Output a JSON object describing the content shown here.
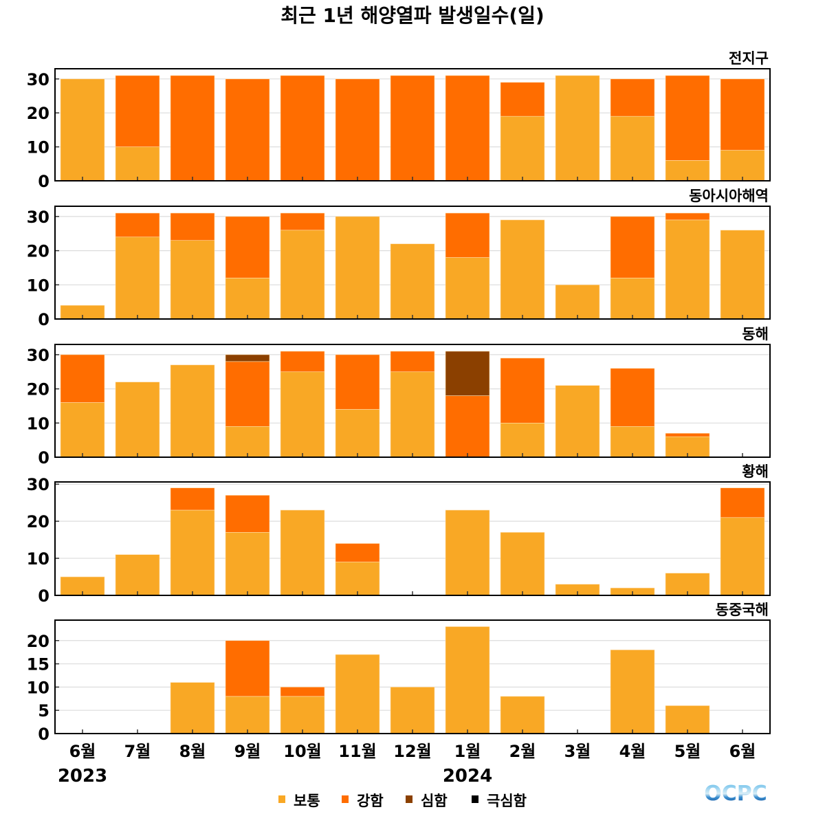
{
  "chart_data": {
    "type": "bar",
    "stacked": true,
    "title": "최근 1년 해양열파 발생일수(일)",
    "categories": [
      "6월",
      "7월",
      "8월",
      "9월",
      "10월",
      "11월",
      "12월",
      "1월",
      "2월",
      "3월",
      "4월",
      "5월",
      "6월"
    ],
    "year_labels": [
      {
        "label": "2023",
        "category_index": 0
      },
      {
        "label": "2024",
        "category_index": 7
      }
    ],
    "legend": {
      "placement": "bottom-center",
      "entries": [
        {
          "name": "보통",
          "color": "#F9A825"
        },
        {
          "name": "강함",
          "color": "#FF6D00"
        },
        {
          "name": "심함",
          "color": "#8B4000"
        },
        {
          "name": "극심함",
          "color": "#000000"
        }
      ]
    },
    "logo": "OCPC",
    "panels": [
      {
        "name": "전지구",
        "ylim": [
          0,
          33
        ],
        "yticks": [
          0,
          10,
          20,
          30
        ],
        "grid": true,
        "series": [
          {
            "name": "보통",
            "values": [
              30,
              10,
              0,
              0,
              0,
              0,
              0,
              0,
              19,
              31,
              19,
              6,
              9
            ]
          },
          {
            "name": "강함",
            "values": [
              0,
              21,
              31,
              30,
              31,
              30,
              31,
              31,
              10,
              0,
              11,
              25,
              21
            ]
          },
          {
            "name": "심함",
            "values": [
              0,
              0,
              0,
              0,
              0,
              0,
              0,
              0,
              0,
              0,
              0,
              0,
              0
            ]
          },
          {
            "name": "극심함",
            "values": [
              0,
              0,
              0,
              0,
              0,
              0,
              0,
              0,
              0,
              0,
              0,
              0,
              0
            ]
          }
        ]
      },
      {
        "name": "동아시아해역",
        "ylim": [
          0,
          33
        ],
        "yticks": [
          0,
          10,
          20,
          30
        ],
        "grid": true,
        "series": [
          {
            "name": "보통",
            "values": [
              4,
              24,
              23,
              12,
              26,
              30,
              22,
              18,
              29,
              10,
              12,
              29,
              26
            ]
          },
          {
            "name": "강함",
            "values": [
              0,
              7,
              8,
              18,
              5,
              0,
              0,
              13,
              0,
              0,
              18,
              2,
              0
            ]
          },
          {
            "name": "심함",
            "values": [
              0,
              0,
              0,
              0,
              0,
              0,
              0,
              0,
              0,
              0,
              0,
              0,
              0
            ]
          },
          {
            "name": "극심함",
            "values": [
              0,
              0,
              0,
              0,
              0,
              0,
              0,
              0,
              0,
              0,
              0,
              0,
              0
            ]
          }
        ]
      },
      {
        "name": "동해",
        "ylim": [
          0,
          33
        ],
        "yticks": [
          0,
          10,
          20,
          30
        ],
        "grid": true,
        "series": [
          {
            "name": "보통",
            "values": [
              16,
              22,
              27,
              9,
              25,
              14,
              25,
              0,
              10,
              21,
              9,
              6,
              0
            ]
          },
          {
            "name": "강함",
            "values": [
              14,
              0,
              0,
              19,
              6,
              16,
              6,
              18,
              19,
              0,
              17,
              1,
              0
            ]
          },
          {
            "name": "심함",
            "values": [
              0,
              0,
              0,
              2,
              0,
              0,
              0,
              13,
              0,
              0,
              0,
              0,
              0
            ]
          },
          {
            "name": "극심함",
            "values": [
              0,
              0,
              0,
              0,
              0,
              0,
              0,
              0,
              0,
              0,
              0,
              0,
              0
            ]
          }
        ]
      },
      {
        "name": "황해",
        "ylim": [
          0,
          30.6
        ],
        "yticks": [
          0,
          10,
          20,
          30
        ],
        "grid": true,
        "series": [
          {
            "name": "보통",
            "values": [
              5,
              11,
              23,
              17,
              23,
              9,
              0,
              23,
              17,
              3,
              2,
              6,
              21
            ]
          },
          {
            "name": "강함",
            "values": [
              0,
              0,
              6,
              10,
              0,
              5,
              0,
              0,
              0,
              0,
              0,
              0,
              8
            ]
          },
          {
            "name": "심함",
            "values": [
              0,
              0,
              0,
              0,
              0,
              0,
              0,
              0,
              0,
              0,
              0,
              0,
              0
            ]
          },
          {
            "name": "극심함",
            "values": [
              0,
              0,
              0,
              0,
              0,
              0,
              0,
              0,
              0,
              0,
              0,
              0,
              0
            ]
          }
        ]
      },
      {
        "name": "동중국해",
        "ylim": [
          0,
          24.4
        ],
        "yticks": [
          0,
          5,
          10,
          15,
          20
        ],
        "grid": true,
        "series": [
          {
            "name": "보통",
            "values": [
              0,
              0,
              11,
              8,
              8,
              17,
              10,
              23,
              8,
              0,
              18,
              6,
              0
            ]
          },
          {
            "name": "강함",
            "values": [
              0,
              0,
              0,
              12,
              2,
              0,
              0,
              0,
              0,
              0,
              0,
              0,
              0
            ]
          },
          {
            "name": "심함",
            "values": [
              0,
              0,
              0,
              0,
              0,
              0,
              0,
              0,
              0,
              0,
              0,
              0,
              0
            ]
          },
          {
            "name": "극심함",
            "values": [
              0,
              0,
              0,
              0,
              0,
              0,
              0,
              0,
              0,
              0,
              0,
              0,
              0
            ]
          }
        ]
      }
    ]
  }
}
